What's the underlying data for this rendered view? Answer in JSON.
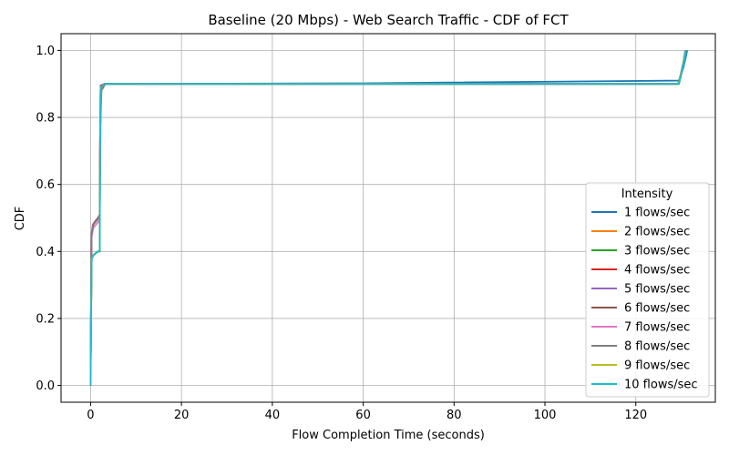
{
  "chart_data": {
    "type": "line",
    "title": "Baseline (20 Mbps) - Web Search Traffic - CDF of FCT",
    "xlabel": "Flow Completion Time (seconds)",
    "ylabel": "CDF",
    "xlim": [
      -6.5,
      137.5
    ],
    "ylim": [
      -0.05,
      1.05
    ],
    "xticks": [
      0,
      20,
      40,
      60,
      80,
      100,
      120
    ],
    "yticks": [
      0.0,
      0.2,
      0.4,
      0.6,
      0.8,
      1.0
    ],
    "xtick_labels": [
      "0",
      "20",
      "40",
      "60",
      "80",
      "100",
      "120"
    ],
    "ytick_labels": [
      "0.0",
      "0.2",
      "0.4",
      "0.6",
      "0.8",
      "1.0"
    ],
    "grid": true,
    "legend_title": "Intensity",
    "legend_position": "lower-right",
    "series": [
      {
        "name": "1 flows/sec",
        "color": "#1f77b4",
        "points": [
          [
            0,
            0
          ],
          [
            0.1,
            0.2
          ],
          [
            0.25,
            0.38
          ],
          [
            0.7,
            0.39
          ],
          [
            1.6,
            0.4
          ],
          [
            2.0,
            0.4
          ],
          [
            2.1,
            0.7
          ],
          [
            2.2,
            0.88
          ],
          [
            2.8,
            0.89
          ],
          [
            3.2,
            0.9
          ],
          [
            60,
            0.902
          ],
          [
            129.5,
            0.91
          ],
          [
            130.0,
            0.93
          ],
          [
            130.5,
            0.95
          ],
          [
            131.0,
            0.98
          ],
          [
            131.3,
            1.0
          ]
        ]
      },
      {
        "name": "2 flows/sec",
        "color": "#ff7f0e",
        "points": [
          [
            0,
            0
          ],
          [
            0.1,
            0.2
          ],
          [
            0.25,
            0.38
          ],
          [
            0.7,
            0.39
          ],
          [
            1.6,
            0.4
          ],
          [
            2.0,
            0.4
          ],
          [
            2.1,
            0.7
          ],
          [
            2.2,
            0.89
          ],
          [
            3.0,
            0.9
          ],
          [
            129.4,
            0.9
          ],
          [
            130.0,
            0.93
          ],
          [
            130.5,
            0.96
          ],
          [
            131.0,
            1.0
          ]
        ]
      },
      {
        "name": "3 flows/sec",
        "color": "#2ca02c",
        "points": [
          [
            0,
            0
          ],
          [
            0.1,
            0.2
          ],
          [
            0.25,
            0.38
          ],
          [
            0.7,
            0.39
          ],
          [
            1.6,
            0.4
          ],
          [
            2.0,
            0.4
          ],
          [
            2.1,
            0.7
          ],
          [
            2.2,
            0.89
          ],
          [
            3.0,
            0.9
          ],
          [
            129.3,
            0.9
          ],
          [
            129.9,
            0.93
          ],
          [
            130.4,
            0.96
          ],
          [
            130.9,
            1.0
          ]
        ]
      },
      {
        "name": "4 flows/sec",
        "color": "#d62728",
        "points": [
          [
            0,
            0
          ],
          [
            0.1,
            0.25
          ],
          [
            0.2,
            0.45
          ],
          [
            0.5,
            0.48
          ],
          [
            1.0,
            0.49
          ],
          [
            1.6,
            0.5
          ],
          [
            2.0,
            0.51
          ],
          [
            2.1,
            0.75
          ],
          [
            2.2,
            0.895
          ],
          [
            3.0,
            0.9
          ],
          [
            129.5,
            0.9
          ],
          [
            130.1,
            0.94
          ],
          [
            130.6,
            0.97
          ],
          [
            131.0,
            1.0
          ]
        ]
      },
      {
        "name": "5 flows/sec",
        "color": "#9467bd",
        "points": [
          [
            0,
            0
          ],
          [
            0.1,
            0.25
          ],
          [
            0.2,
            0.45
          ],
          [
            0.6,
            0.48
          ],
          [
            1.1,
            0.49
          ],
          [
            1.7,
            0.5
          ],
          [
            2.0,
            0.51
          ],
          [
            2.1,
            0.75
          ],
          [
            2.2,
            0.89
          ],
          [
            3.0,
            0.9
          ],
          [
            129.5,
            0.9
          ],
          [
            130.1,
            0.94
          ],
          [
            130.6,
            0.97
          ],
          [
            131.0,
            1.0
          ]
        ]
      },
      {
        "name": "6 flows/sec",
        "color": "#8c564b",
        "points": [
          [
            0,
            0
          ],
          [
            0.1,
            0.25
          ],
          [
            0.2,
            0.45
          ],
          [
            0.6,
            0.48
          ],
          [
            1.2,
            0.49
          ],
          [
            1.8,
            0.5
          ],
          [
            2.0,
            0.51
          ],
          [
            2.1,
            0.75
          ],
          [
            2.3,
            0.89
          ],
          [
            3.0,
            0.9
          ],
          [
            129.5,
            0.9
          ],
          [
            130.1,
            0.94
          ],
          [
            130.6,
            0.97
          ],
          [
            131.0,
            1.0
          ]
        ]
      },
      {
        "name": "7 flows/sec",
        "color": "#e377c2",
        "points": [
          [
            0,
            0
          ],
          [
            0.1,
            0.25
          ],
          [
            0.2,
            0.44
          ],
          [
            0.6,
            0.47
          ],
          [
            1.2,
            0.48
          ],
          [
            1.8,
            0.49
          ],
          [
            2.0,
            0.5
          ],
          [
            2.1,
            0.75
          ],
          [
            2.3,
            0.89
          ],
          [
            3.0,
            0.9
          ],
          [
            129.5,
            0.9
          ],
          [
            130.1,
            0.94
          ],
          [
            130.6,
            0.97
          ],
          [
            131.0,
            1.0
          ]
        ]
      },
      {
        "name": "8 flows/sec",
        "color": "#7f7f7f",
        "points": [
          [
            0,
            0
          ],
          [
            0.1,
            0.25
          ],
          [
            0.2,
            0.45
          ],
          [
            0.6,
            0.48
          ],
          [
            1.2,
            0.49
          ],
          [
            1.8,
            0.5
          ],
          [
            2.0,
            0.51
          ],
          [
            2.1,
            0.75
          ],
          [
            2.4,
            0.88
          ],
          [
            2.8,
            0.89
          ],
          [
            3.2,
            0.9
          ],
          [
            129.5,
            0.9
          ],
          [
            130.1,
            0.94
          ],
          [
            130.6,
            0.97
          ],
          [
            131.0,
            1.0
          ]
        ]
      },
      {
        "name": "9 flows/sec",
        "color": "#bcbd22",
        "points": [
          [
            0,
            0
          ],
          [
            0.1,
            0.2
          ],
          [
            0.25,
            0.38
          ],
          [
            0.7,
            0.39
          ],
          [
            1.6,
            0.4
          ],
          [
            2.0,
            0.4
          ],
          [
            2.1,
            0.7
          ],
          [
            2.2,
            0.89
          ],
          [
            3.0,
            0.9
          ],
          [
            129.4,
            0.9
          ],
          [
            130.0,
            0.93
          ],
          [
            130.5,
            0.96
          ],
          [
            131.0,
            1.0
          ]
        ]
      },
      {
        "name": "10 flows/sec",
        "color": "#17becf",
        "points": [
          [
            0,
            0
          ],
          [
            0.1,
            0.2
          ],
          [
            0.25,
            0.38
          ],
          [
            0.7,
            0.39
          ],
          [
            1.6,
            0.4
          ],
          [
            2.0,
            0.4
          ],
          [
            2.1,
            0.7
          ],
          [
            2.3,
            0.89
          ],
          [
            3.0,
            0.9
          ],
          [
            129.4,
            0.9
          ],
          [
            129.9,
            0.92
          ],
          [
            130.3,
            0.95
          ],
          [
            130.7,
            0.97
          ],
          [
            131.0,
            1.0
          ]
        ]
      }
    ]
  }
}
